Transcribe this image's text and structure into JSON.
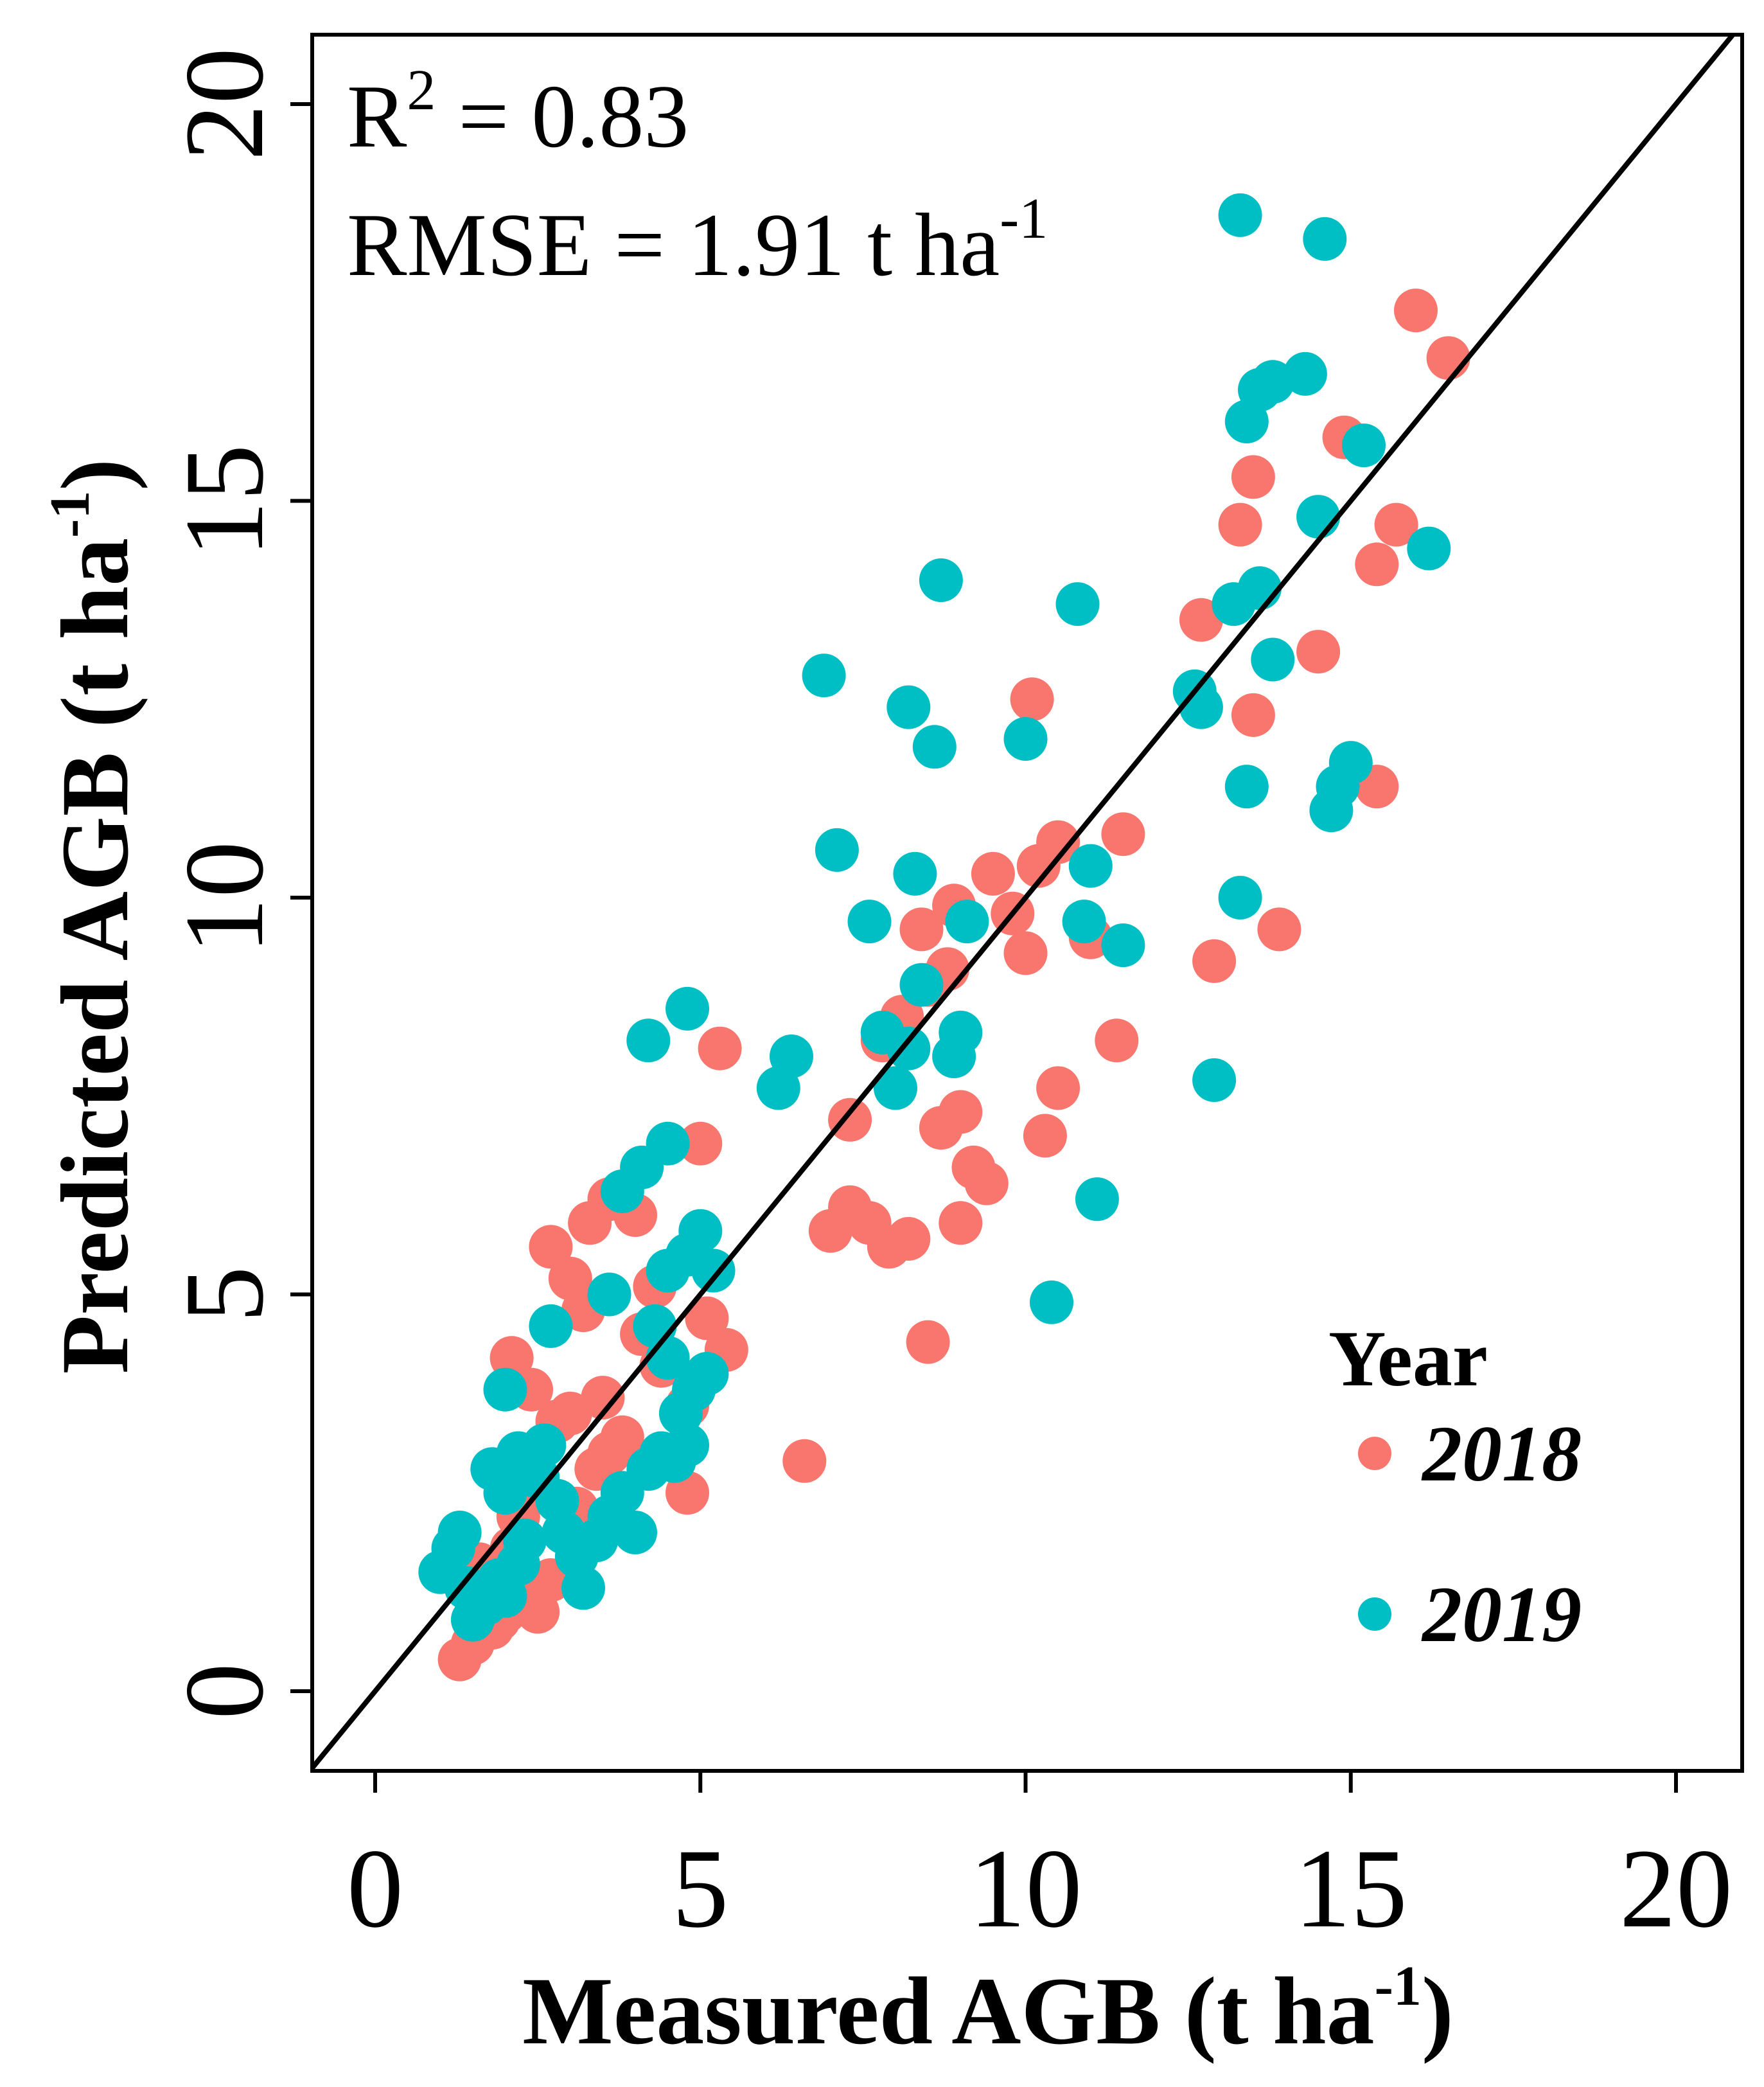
{
  "chart_data": {
    "type": "scatter",
    "xlabel": "Measured AGB (t ha",
    "xlabel_sup": "-1",
    "xlabel_end": ")",
    "ylabel": "Predicted AGB (t ha",
    "ylabel_sup": "-1",
    "ylabel_end": ")",
    "xlim": [
      -1,
      21
    ],
    "ylim": [
      -1,
      21
    ],
    "xticks": [
      0,
      5,
      10,
      15,
      20
    ],
    "yticks": [
      0,
      5,
      10,
      15,
      20
    ],
    "xtick_labels": [
      "0",
      "5",
      "10",
      "15",
      "20"
    ],
    "ytick_labels": [
      "0",
      "5",
      "10",
      "15",
      "20"
    ],
    "reference_line": "1:1",
    "grid": false,
    "annotations": {
      "r2_prefix": "R",
      "r2_sup": "2",
      "r2_value": " = 0.83",
      "rmse_text": "RMSE = 1.91  t ha",
      "rmse_sup": "-1"
    },
    "legend": {
      "title": "Year",
      "position": "bottom-right"
    },
    "series": [
      {
        "name": "2018",
        "color": "#F8766D",
        "points": [
          [
            1.3,
            0.4
          ],
          [
            1.5,
            0.6
          ],
          [
            1.8,
            0.8
          ],
          [
            2.0,
            1.0
          ],
          [
            2.3,
            1.2
          ],
          [
            2.5,
            1.0
          ],
          [
            1.6,
            1.6
          ],
          [
            2.1,
            1.8
          ],
          [
            2.7,
            1.4
          ],
          [
            2.9,
            2.0
          ],
          [
            2.4,
            2.6
          ],
          [
            3.1,
            2.3
          ],
          [
            3.4,
            2.8
          ],
          [
            3.6,
            3.0
          ],
          [
            2.1,
            4.2
          ],
          [
            2.4,
            3.8
          ],
          [
            2.8,
            3.4
          ],
          [
            3.0,
            3.5
          ],
          [
            3.5,
            3.7
          ],
          [
            3.8,
            3.2
          ],
          [
            2.7,
            5.6
          ],
          [
            3.0,
            5.2
          ],
          [
            3.3,
            5.9
          ],
          [
            3.6,
            6.2
          ],
          [
            4.0,
            6.0
          ],
          [
            3.2,
            4.8
          ],
          [
            4.1,
            4.5
          ],
          [
            4.4,
            4.1
          ],
          [
            4.8,
            3.6
          ],
          [
            5.1,
            4.7
          ],
          [
            5.4,
            4.3
          ],
          [
            5.0,
            6.9
          ],
          [
            5.3,
            8.1
          ],
          [
            4.8,
            2.5
          ],
          [
            4.3,
            5.1
          ],
          [
            6.6,
            2.9
          ],
          [
            7.0,
            5.8
          ],
          [
            7.3,
            6.1
          ],
          [
            7.6,
            5.9
          ],
          [
            7.9,
            5.6
          ],
          [
            8.2,
            5.7
          ],
          [
            8.5,
            4.4
          ],
          [
            7.3,
            7.2
          ],
          [
            7.8,
            8.2
          ],
          [
            8.1,
            8.5
          ],
          [
            8.5,
            8.9
          ],
          [
            8.8,
            9.1
          ],
          [
            8.7,
            7.1
          ],
          [
            9.0,
            7.3
          ],
          [
            9.2,
            6.6
          ],
          [
            9.4,
            6.4
          ],
          [
            9.0,
            5.9
          ],
          [
            8.4,
            9.6
          ],
          [
            8.9,
            9.9
          ],
          [
            9.5,
            10.3
          ],
          [
            9.8,
            9.8
          ],
          [
            10.0,
            9.3
          ],
          [
            10.2,
            10.4
          ],
          [
            10.5,
            10.7
          ],
          [
            10.1,
            12.5
          ],
          [
            10.3,
            7.0
          ],
          [
            10.5,
            7.6
          ],
          [
            11.0,
            9.5
          ],
          [
            11.4,
            8.2
          ],
          [
            11.5,
            10.8
          ],
          [
            12.7,
            13.5
          ],
          [
            12.9,
            9.2
          ],
          [
            13.3,
            14.7
          ],
          [
            13.5,
            15.3
          ],
          [
            13.5,
            12.3
          ],
          [
            13.9,
            9.6
          ],
          [
            14.5,
            13.1
          ],
          [
            14.9,
            15.8
          ],
          [
            15.4,
            11.4
          ],
          [
            15.4,
            14.2
          ],
          [
            15.7,
            14.7
          ],
          [
            16.0,
            17.4
          ],
          [
            16.5,
            16.8
          ],
          [
            2.2,
            2.2
          ],
          [
            1.9,
            0.9
          ]
        ]
      },
      {
        "name": "2019",
        "color": "#00BFC4",
        "points": [
          [
            1.0,
            1.5
          ],
          [
            1.2,
            1.8
          ],
          [
            1.4,
            1.3
          ],
          [
            1.3,
            2.0
          ],
          [
            1.5,
            0.9
          ],
          [
            1.7,
            1.1
          ],
          [
            1.9,
            1.4
          ],
          [
            2.0,
            1.2
          ],
          [
            2.2,
            1.6
          ],
          [
            2.3,
            1.9
          ],
          [
            1.8,
            2.8
          ],
          [
            2.0,
            2.5
          ],
          [
            2.2,
            3.0
          ],
          [
            2.5,
            2.7
          ],
          [
            2.6,
            3.1
          ],
          [
            2.8,
            2.4
          ],
          [
            2.9,
            2.0
          ],
          [
            3.1,
            1.7
          ],
          [
            3.2,
            1.3
          ],
          [
            3.4,
            1.9
          ],
          [
            3.6,
            2.2
          ],
          [
            3.8,
            2.5
          ],
          [
            4.0,
            2.0
          ],
          [
            4.2,
            2.8
          ],
          [
            4.4,
            3.0
          ],
          [
            4.6,
            2.9
          ],
          [
            4.8,
            3.1
          ],
          [
            4.7,
            3.5
          ],
          [
            4.9,
            3.8
          ],
          [
            5.1,
            4.0
          ],
          [
            4.5,
            4.2
          ],
          [
            4.3,
            4.6
          ],
          [
            4.5,
            5.3
          ],
          [
            4.8,
            5.5
          ],
          [
            5.0,
            5.8
          ],
          [
            5.2,
            5.3
          ],
          [
            3.6,
            5.0
          ],
          [
            2.0,
            3.8
          ],
          [
            2.7,
            4.6
          ],
          [
            3.8,
            6.3
          ],
          [
            4.1,
            6.6
          ],
          [
            4.5,
            6.9
          ],
          [
            4.2,
            8.2
          ],
          [
            4.8,
            8.6
          ],
          [
            6.2,
            7.6
          ],
          [
            6.4,
            8.0
          ],
          [
            6.9,
            12.8
          ],
          [
            7.1,
            10.6
          ],
          [
            7.6,
            9.7
          ],
          [
            7.8,
            8.3
          ],
          [
            8.0,
            7.6
          ],
          [
            8.2,
            8.1
          ],
          [
            8.2,
            12.4
          ],
          [
            8.3,
            10.3
          ],
          [
            8.4,
            8.9
          ],
          [
            8.6,
            11.9
          ],
          [
            8.7,
            14.0
          ],
          [
            8.9,
            8.0
          ],
          [
            9.0,
            8.3
          ],
          [
            9.1,
            9.7
          ],
          [
            10.0,
            12.0
          ],
          [
            10.4,
            4.9
          ],
          [
            10.8,
            13.7
          ],
          [
            10.9,
            9.7
          ],
          [
            11.0,
            10.4
          ],
          [
            11.1,
            6.2
          ],
          [
            11.5,
            9.4
          ],
          [
            12.6,
            12.6
          ],
          [
            12.7,
            12.4
          ],
          [
            12.9,
            7.7
          ],
          [
            13.2,
            13.7
          ],
          [
            13.3,
            10.0
          ],
          [
            13.4,
            11.4
          ],
          [
            13.6,
            13.9
          ],
          [
            13.8,
            13.0
          ],
          [
            13.4,
            16.0
          ],
          [
            13.6,
            16.4
          ],
          [
            13.8,
            16.5
          ],
          [
            14.3,
            16.6
          ],
          [
            14.5,
            14.8
          ],
          [
            14.7,
            11.1
          ],
          [
            14.8,
            11.4
          ],
          [
            15.0,
            11.7
          ],
          [
            15.2,
            15.7
          ],
          [
            16.2,
            14.4
          ],
          [
            13.3,
            18.6
          ],
          [
            14.6,
            18.3
          ]
        ]
      }
    ]
  }
}
